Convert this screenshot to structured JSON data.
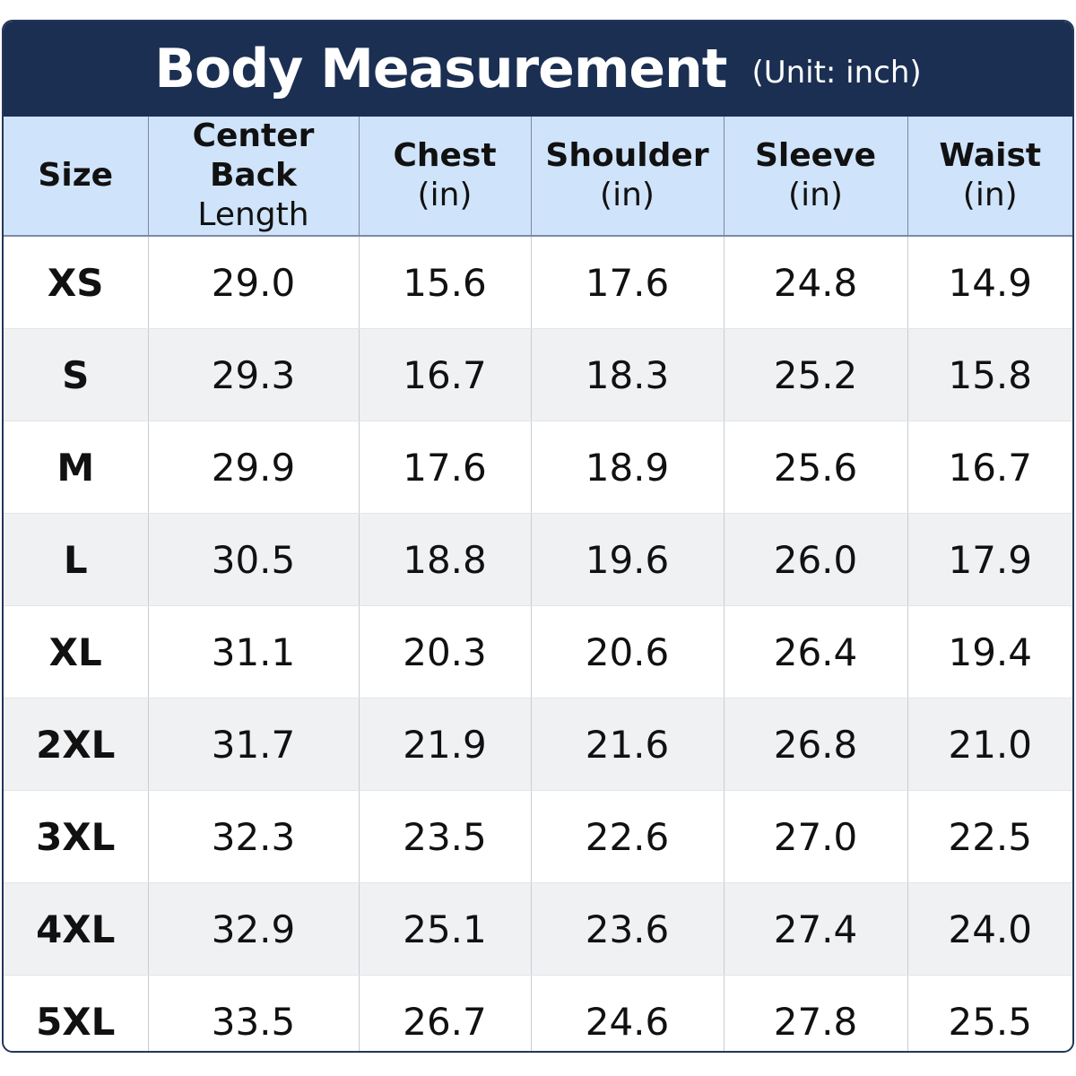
{
  "header": {
    "title": "Body Measurement",
    "unit": "(Unit: inch)"
  },
  "table": {
    "columns": [
      [
        "Size"
      ],
      [
        "Center Back",
        "Length"
      ],
      [
        "Chest",
        "(in)"
      ],
      [
        "Shoulder",
        "(in)"
      ],
      [
        "Sleeve",
        "(in)"
      ],
      [
        "Waist",
        "(in)"
      ]
    ],
    "rows": [
      [
        "XS",
        "29.0",
        "15.6",
        "17.6",
        "24.8",
        "14.9"
      ],
      [
        "S",
        "29.3",
        "16.7",
        "18.3",
        "25.2",
        "15.8"
      ],
      [
        "M",
        "29.9",
        "17.6",
        "18.9",
        "25.6",
        "16.7"
      ],
      [
        "L",
        "30.5",
        "18.8",
        "19.6",
        "26.0",
        "17.9"
      ],
      [
        "XL",
        "31.1",
        "20.3",
        "20.6",
        "26.4",
        "19.4"
      ],
      [
        "2XL",
        "31.7",
        "21.9",
        "21.6",
        "26.8",
        "21.0"
      ],
      [
        "3XL",
        "32.3",
        "23.5",
        "22.6",
        "27.0",
        "22.5"
      ],
      [
        "4XL",
        "32.9",
        "25.1",
        "23.6",
        "27.4",
        "24.0"
      ],
      [
        "5XL",
        "33.5",
        "26.7",
        "24.6",
        "27.8",
        "25.5"
      ]
    ]
  }
}
